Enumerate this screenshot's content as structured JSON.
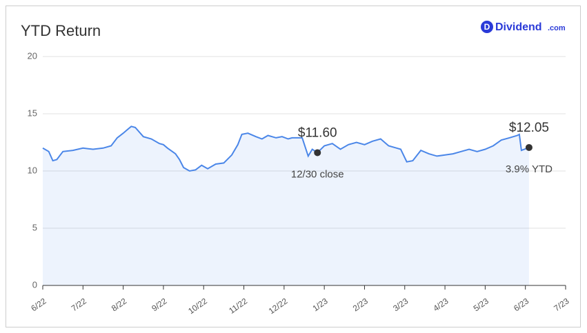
{
  "logo": {
    "icon": "D",
    "name": "Dividend",
    "suffix": ".com"
  },
  "chart_data": {
    "type": "line",
    "title": "YTD Return",
    "x": [
      0,
      0.15,
      0.25,
      0.35,
      0.5,
      0.75,
      1.0,
      1.25,
      1.5,
      1.7,
      1.85,
      2.0,
      2.1,
      2.2,
      2.3,
      2.5,
      2.7,
      2.9,
      3.0,
      3.1,
      3.3,
      3.4,
      3.5,
      3.65,
      3.8,
      3.95,
      4.1,
      4.3,
      4.5,
      4.7,
      4.85,
      4.95,
      5.1,
      5.3,
      5.45,
      5.6,
      5.8,
      5.95,
      6.1,
      6.2,
      6.45,
      6.6,
      6.7,
      6.83,
      7.0,
      7.2,
      7.4,
      7.6,
      7.8,
      8.0,
      8.2,
      8.4,
      8.6,
      8.8,
      8.9,
      9.05,
      9.2,
      9.4,
      9.6,
      9.8,
      10.0,
      10.2,
      10.4,
      10.6,
      10.8,
      11.0,
      11.2,
      11.4,
      11.6,
      11.8,
      11.85,
      11.9,
      12.09
    ],
    "series": [
      {
        "name": "YTD Return",
        "color": "#4a86e8",
        "values": [
          12.0,
          11.7,
          10.9,
          11.0,
          11.7,
          11.8,
          12.0,
          11.9,
          12.0,
          12.2,
          12.9,
          13.3,
          13.6,
          13.9,
          13.8,
          13.0,
          12.8,
          12.4,
          12.3,
          12.0,
          11.5,
          11.0,
          10.3,
          10.0,
          10.1,
          10.5,
          10.2,
          10.6,
          10.7,
          11.4,
          12.3,
          13.2,
          13.3,
          13.0,
          12.8,
          13.1,
          12.9,
          13.0,
          12.8,
          12.9,
          12.9,
          11.3,
          11.9,
          11.6,
          12.2,
          12.4,
          11.9,
          12.3,
          12.5,
          12.3,
          12.6,
          12.8,
          12.2,
          12.0,
          11.9,
          10.8,
          10.9,
          11.8,
          11.5,
          11.3,
          11.4,
          11.5,
          11.7,
          11.9,
          11.7,
          11.9,
          12.2,
          12.7,
          12.9,
          13.1,
          13.2,
          11.8,
          12.05
        ]
      }
    ],
    "annotations": [
      {
        "x": 6.83,
        "value": 11.6,
        "label": "$11.60",
        "note": "12/30 close"
      },
      {
        "x": 12.09,
        "value": 12.05,
        "label": "$12.05",
        "note": "3.9% YTD"
      }
    ],
    "xlim": [
      0,
      13
    ],
    "xticks": [
      {
        "value": 0,
        "label": "6/22"
      },
      {
        "value": 1,
        "label": "7/22"
      },
      {
        "value": 2,
        "label": "8/22"
      },
      {
        "value": 3,
        "label": "9/22"
      },
      {
        "value": 4,
        "label": "10/22"
      },
      {
        "value": 5,
        "label": "11/22"
      },
      {
        "value": 6,
        "label": "12/22"
      },
      {
        "value": 7,
        "label": "1/23"
      },
      {
        "value": 8,
        "label": "2/23"
      },
      {
        "value": 9,
        "label": "3/23"
      },
      {
        "value": 10,
        "label": "4/23"
      },
      {
        "value": 11,
        "label": "5/23"
      },
      {
        "value": 12,
        "label": "6/23"
      },
      {
        "value": 13,
        "label": "7/23"
      }
    ],
    "ylim": [
      0,
      20
    ],
    "yticks": [
      0,
      5,
      10,
      15,
      20
    ],
    "grid": true
  }
}
